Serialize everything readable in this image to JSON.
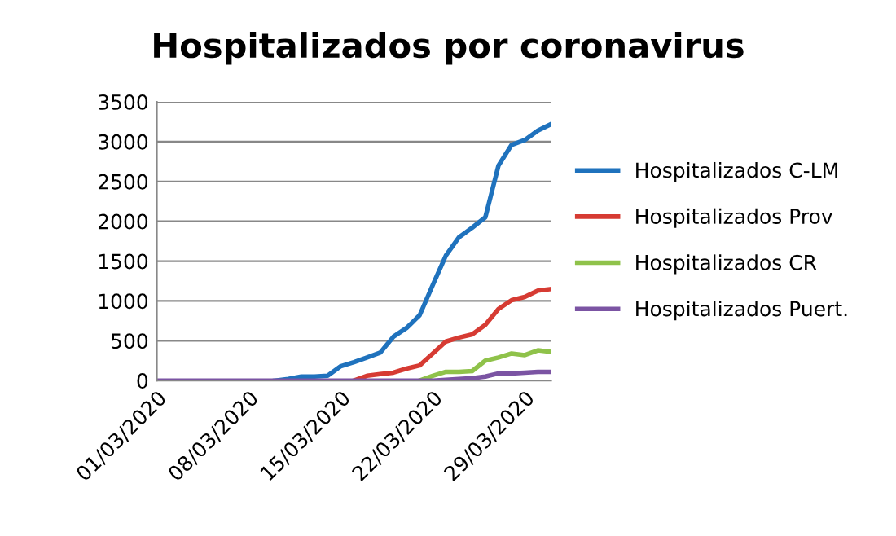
{
  "chart_data": {
    "type": "line",
    "title": "Hospitalizados por coronavirus",
    "x": [
      "2020-03-01",
      "2020-03-02",
      "2020-03-03",
      "2020-03-04",
      "2020-03-05",
      "2020-03-06",
      "2020-03-07",
      "2020-03-08",
      "2020-03-09",
      "2020-03-10",
      "2020-03-11",
      "2020-03-12",
      "2020-03-13",
      "2020-03-14",
      "2020-03-15",
      "2020-03-16",
      "2020-03-17",
      "2020-03-18",
      "2020-03-19",
      "2020-03-20",
      "2020-03-21",
      "2020-03-22",
      "2020-03-23",
      "2020-03-24",
      "2020-03-25",
      "2020-03-26",
      "2020-03-27",
      "2020-03-28",
      "2020-03-29",
      "2020-03-30",
      "2020-03-31"
    ],
    "series": [
      {
        "name": "Hospitalizados C-LM",
        "color": "#1f72bd",
        "values": [
          null,
          null,
          null,
          null,
          null,
          null,
          null,
          null,
          null,
          0,
          20,
          50,
          50,
          60,
          180,
          230,
          290,
          350,
          550,
          660,
          820,
          1200,
          1570,
          1800,
          1920,
          2050,
          2700,
          2960,
          3020,
          3140,
          3220
        ]
      },
      {
        "name": "Hospitalizados Prov",
        "color": "#d63b33",
        "values": [
          null,
          null,
          null,
          null,
          null,
          null,
          null,
          null,
          null,
          null,
          null,
          null,
          null,
          null,
          null,
          0,
          60,
          80,
          100,
          150,
          190,
          340,
          490,
          540,
          580,
          700,
          900,
          1010,
          1050,
          1130,
          1150
        ]
      },
      {
        "name": "Hospitalizados CR",
        "color": "#8fc24a",
        "values": [
          null,
          null,
          null,
          null,
          null,
          null,
          null,
          null,
          null,
          null,
          null,
          null,
          null,
          null,
          null,
          null,
          null,
          null,
          null,
          null,
          0,
          60,
          110,
          110,
          120,
          250,
          290,
          340,
          320,
          380,
          360
        ]
      },
      {
        "name": "Hospitalizados Puert.",
        "color": "#7b54a3",
        "values": [
          0,
          0,
          0,
          0,
          0,
          0,
          0,
          0,
          0,
          0,
          0,
          0,
          0,
          0,
          0,
          0,
          0,
          0,
          0,
          0,
          0,
          0,
          10,
          20,
          30,
          50,
          90,
          90,
          100,
          110,
          110
        ]
      }
    ],
    "xlim": [
      "2020-03-01",
      "2020-03-31"
    ],
    "xticks": [
      {
        "value": "2020-03-01",
        "label": "01/03/2020"
      },
      {
        "value": "2020-03-08",
        "label": "08/03/2020"
      },
      {
        "value": "2020-03-15",
        "label": "15/03/2020"
      },
      {
        "value": "2020-03-22",
        "label": "22/03/2020"
      },
      {
        "value": "2020-03-29",
        "label": "29/03/2020"
      }
    ],
    "ylim": [
      0,
      3500
    ],
    "yticks": [
      0,
      500,
      1000,
      1500,
      2000,
      2500,
      3000,
      3500
    ],
    "grid": "y",
    "legend": "right",
    "marker": "none",
    "line_style": "solid"
  }
}
